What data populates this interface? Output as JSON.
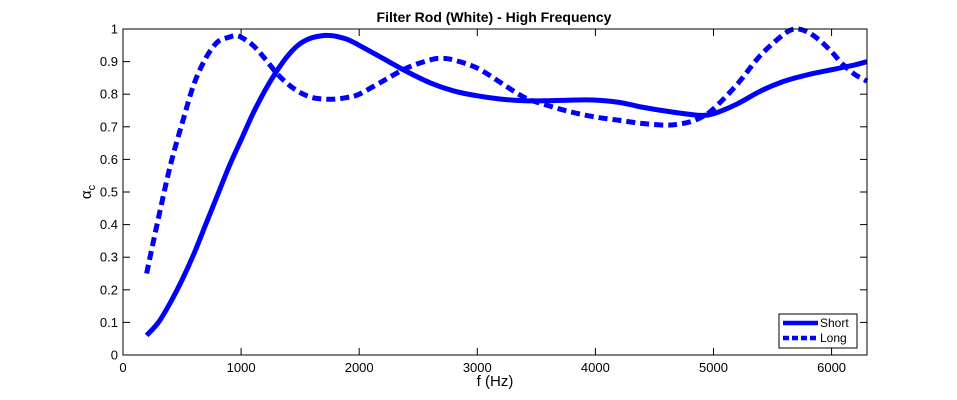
{
  "chart_data": {
    "type": "line",
    "title": "Filter Rod (White) - High Frequency",
    "xlabel": "f (Hz)",
    "ylabel": "α",
    "ylabel_subscript": "c",
    "xlim": [
      0,
      6300
    ],
    "ylim": [
      0,
      1
    ],
    "xticks": [
      0,
      1000,
      2000,
      3000,
      4000,
      5000,
      6000
    ],
    "yticks": [
      0,
      0.1,
      0.2,
      0.3,
      0.4,
      0.5,
      0.6,
      0.7,
      0.8,
      0.9,
      1
    ],
    "grid": false,
    "legend_position": "bottom-right",
    "line_color": "#0000ff",
    "series": [
      {
        "name": "Short",
        "style": "solid",
        "x": [
          200,
          300,
          400,
          500,
          600,
          700,
          800,
          900,
          1000,
          1100,
          1200,
          1300,
          1400,
          1500,
          1600,
          1700,
          1750,
          1800,
          1900,
          2000,
          2200,
          2400,
          2600,
          2800,
          3000,
          3200,
          3400,
          3600,
          3800,
          4000,
          4200,
          4400,
          4600,
          4800,
          4900,
          5000,
          5200,
          5400,
          5600,
          5800,
          6000,
          6200,
          6300
        ],
        "y": [
          0.06,
          0.1,
          0.16,
          0.23,
          0.31,
          0.4,
          0.49,
          0.58,
          0.66,
          0.74,
          0.81,
          0.87,
          0.92,
          0.955,
          0.973,
          0.98,
          0.98,
          0.978,
          0.968,
          0.95,
          0.91,
          0.87,
          0.835,
          0.81,
          0.795,
          0.785,
          0.78,
          0.78,
          0.782,
          0.782,
          0.775,
          0.76,
          0.748,
          0.738,
          0.735,
          0.74,
          0.77,
          0.81,
          0.84,
          0.86,
          0.875,
          0.89,
          0.9
        ]
      },
      {
        "name": "Long",
        "style": "dashed",
        "x": [
          200,
          300,
          400,
          500,
          600,
          700,
          800,
          900,
          950,
          1000,
          1100,
          1200,
          1300,
          1400,
          1500,
          1600,
          1700,
          1800,
          1900,
          2000,
          2200,
          2400,
          2600,
          2700,
          2800,
          3000,
          3200,
          3400,
          3600,
          3800,
          4000,
          4200,
          4400,
          4600,
          4700,
          4800,
          4900,
          5000,
          5200,
          5400,
          5600,
          5700,
          5800,
          5900,
          6000,
          6100,
          6200,
          6300
        ],
        "y": [
          0.25,
          0.42,
          0.58,
          0.71,
          0.83,
          0.91,
          0.96,
          0.975,
          0.98,
          0.975,
          0.95,
          0.91,
          0.865,
          0.83,
          0.805,
          0.79,
          0.785,
          0.785,
          0.79,
          0.8,
          0.84,
          0.88,
          0.905,
          0.91,
          0.905,
          0.88,
          0.835,
          0.79,
          0.765,
          0.745,
          0.73,
          0.72,
          0.71,
          0.705,
          0.708,
          0.715,
          0.73,
          0.755,
          0.83,
          0.92,
          0.985,
          1.0,
          0.99,
          0.965,
          0.93,
          0.89,
          0.86,
          0.84
        ]
      }
    ]
  }
}
